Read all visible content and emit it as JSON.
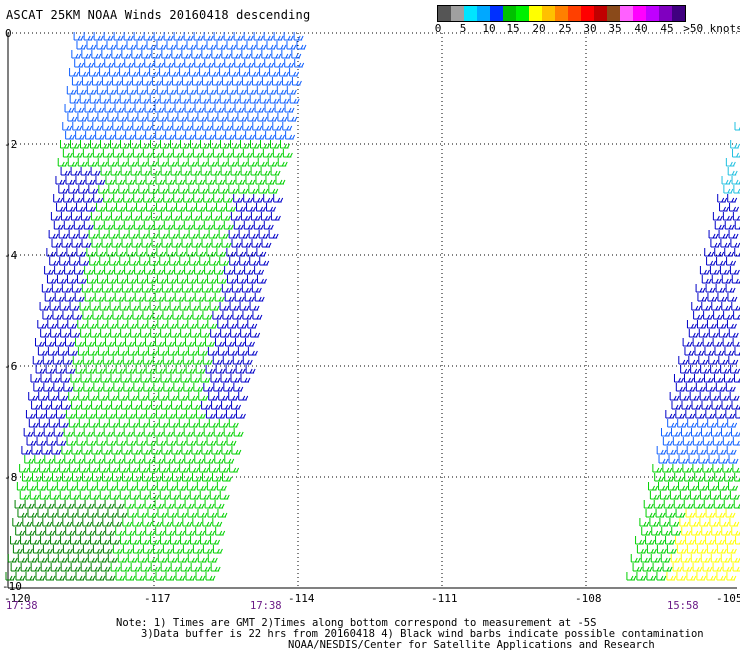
{
  "title": "ASCAT 25KM NOAA Winds 20160418 descending",
  "legend": {
    "colors": [
      "#555555",
      "#a0a0a0",
      "#00e5ff",
      "#00a8ff",
      "#0030ff",
      "#00c000",
      "#00f000",
      "#ffff00",
      "#ffc000",
      "#ff8000",
      "#ff4000",
      "#ff0000",
      "#c00000",
      "#8a4a1a",
      "#ff60ff",
      "#ff00ff",
      "#c000ff",
      "#8000c0",
      "#400080"
    ],
    "labels": [
      "0",
      "5",
      "10",
      "15",
      "20",
      "25",
      "30",
      "35",
      "40",
      "45",
      ">50 knots"
    ]
  },
  "axes": {
    "x_ticks": [
      "-120",
      "-117",
      "-114",
      "-111",
      "-108",
      "-105"
    ],
    "y_ticks": [
      "0",
      "-2",
      "-4",
      "-6",
      "-8",
      "-10"
    ]
  },
  "pass_times": [
    "17:38",
    "17:38",
    "15:58"
  ],
  "notes": [
    "Note: 1) Times are GMT 2)Times along bottom correspond to measurement at -5S",
    "3)Data buffer is 22 hrs from 20160418 4) Black wind barbs indicate possible contamination",
    "NOAA/NESDIS/Center for Satellite Applications and Research"
  ],
  "swath_colors": {
    "dark_blue": "#0000c8",
    "blue": "#1060ff",
    "cyan": "#20c0e0",
    "green": "#00d000",
    "dark_green": "#008000",
    "yellow": "#ffff00"
  }
}
